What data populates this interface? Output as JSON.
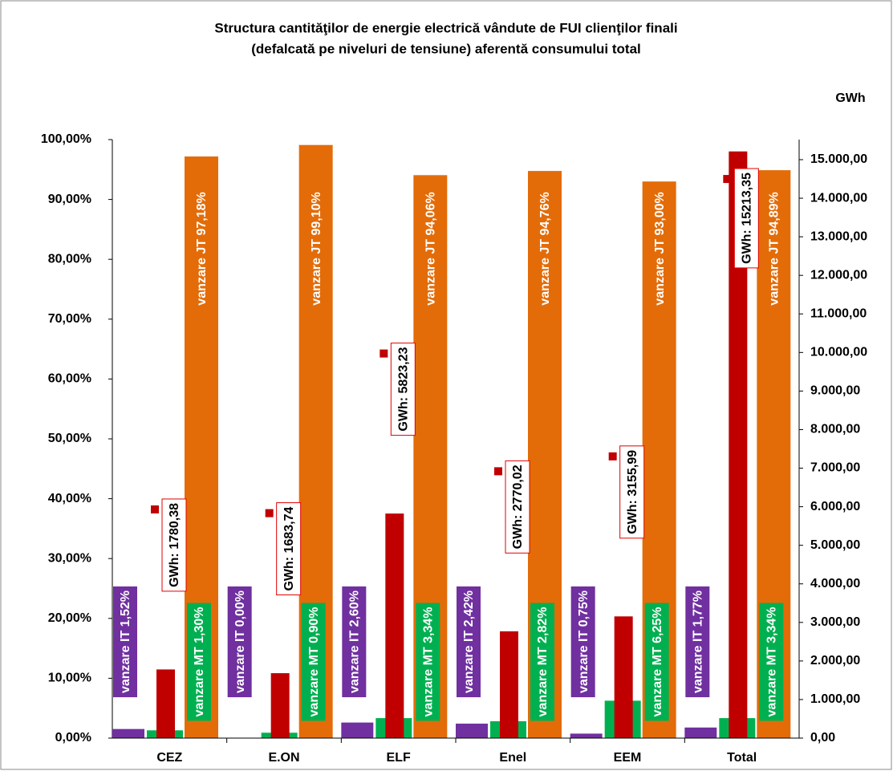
{
  "chart_data": {
    "type": "bar",
    "title": [
      "Structura cantităţilor de energie electrică vândute de FUI clienţilor finali",
      "(defalcată pe niveluri  de  tensiune) aferentă consumului total"
    ],
    "y2label": "GWh",
    "categories": [
      "CEZ",
      "E.ON",
      "ELF",
      "Enel",
      "EEM",
      "Total"
    ],
    "series": [
      {
        "name": "vanzare IT",
        "color": "#7030a0",
        "values": [
          1.52,
          0.0,
          2.6,
          2.42,
          0.75,
          1.77
        ],
        "value_labels": [
          "vanzare IT 1,52%",
          "vanzare IT 0,00%",
          "vanzare IT 2,60%",
          "vanzare IT 2,42%",
          "vanzare IT 0,75%",
          "vanzare IT 1,77%"
        ]
      },
      {
        "name": "vanzare MT",
        "color": "#00b050",
        "values": [
          1.3,
          0.9,
          3.34,
          2.82,
          6.25,
          3.34
        ],
        "value_labels": [
          "vanzare MT 1,30%",
          "vanzare MT 0,90%",
          "vanzare MT 3,34%",
          "vanzare MT 2,82%",
          "vanzare MT 6,25%",
          "vanzare MT 3,34%"
        ]
      },
      {
        "name": "vanzare JT",
        "color": "#e36c09",
        "values": [
          97.18,
          99.1,
          94.06,
          94.76,
          93.0,
          94.89
        ],
        "value_labels": [
          "vanzare JT 97,18%",
          "vanzare JT 99,10%",
          "vanzare JT 94,06%",
          "vanzare JT 94,76%",
          "vanzare JT 93,00%",
          "vanzare JT 94,89%"
        ]
      },
      {
        "name": "GWh",
        "color": "#c00000",
        "axis": "y2",
        "values": [
          1780.38,
          1683.74,
          5823.23,
          2770.02,
          3155.99,
          15213.35
        ],
        "value_labels": [
          "GWh: 1780,38",
          "GWh: 1683,74",
          "GWh: 5823,23",
          "GWh: 2770,02",
          "GWh: 3155,99",
          "GWh: 15213,35"
        ]
      }
    ],
    "ylim": [
      0,
      100
    ],
    "yticks": [
      {
        "value": 0,
        "label": "0,00%"
      },
      {
        "value": 10,
        "label": "10,00%"
      },
      {
        "value": 20,
        "label": "20,00%"
      },
      {
        "value": 30,
        "label": "30,00%"
      },
      {
        "value": 40,
        "label": "40,00%"
      },
      {
        "value": 50,
        "label": "50,00%"
      },
      {
        "value": 60,
        "label": "60,00%"
      },
      {
        "value": 70,
        "label": "70,00%"
      },
      {
        "value": 80,
        "label": "80,00%"
      },
      {
        "value": 90,
        "label": "90,00%"
      },
      {
        "value": 100,
        "label": "100,00%"
      }
    ],
    "y2lim": [
      0,
      15520
    ],
    "y2ticks": [
      {
        "value": 0,
        "label": "0,00"
      },
      {
        "value": 1000,
        "label": "1.000,00"
      },
      {
        "value": 2000,
        "label": "2.000,00"
      },
      {
        "value": 3000,
        "label": "3.000,00"
      },
      {
        "value": 4000,
        "label": "4.000,00"
      },
      {
        "value": 5000,
        "label": "5.000,00"
      },
      {
        "value": 6000,
        "label": "6.000,00"
      },
      {
        "value": 7000,
        "label": "7.000,00"
      },
      {
        "value": 8000,
        "label": "8.000,00"
      },
      {
        "value": 9000,
        "label": "9.000,00"
      },
      {
        "value": 10000,
        "label": "10.000,00"
      },
      {
        "value": 11000,
        "label": "11.000,00"
      },
      {
        "value": 12000,
        "label": "12.000,00"
      },
      {
        "value": 13000,
        "label": "13.000,00"
      },
      {
        "value": 14000,
        "label": "14.000,00"
      },
      {
        "value": 15000,
        "label": "15.000,00"
      }
    ],
    "grid": false
  }
}
